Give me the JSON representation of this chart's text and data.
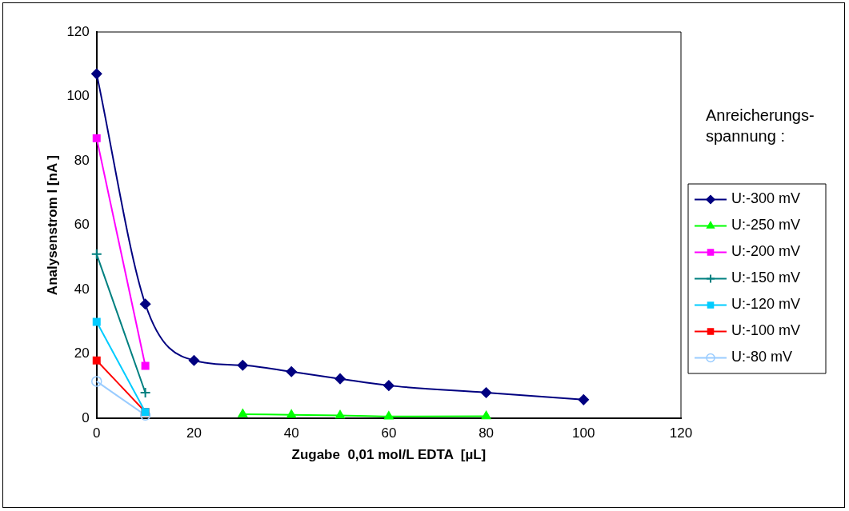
{
  "chart_data": {
    "type": "line",
    "xlabel": "Zugabe  0,01 mol/L EDTA  [µL]",
    "ylabel": "Analysenstrom I [nA ]",
    "legend_title": "Anreicherungs-spannung :",
    "xlim": [
      0,
      120
    ],
    "xticks": [
      0,
      20,
      40,
      60,
      80,
      100,
      120
    ],
    "ylim": [
      0,
      120
    ],
    "yticks": [
      0,
      20,
      40,
      60,
      80,
      100,
      120
    ],
    "grid": false,
    "legend": "right",
    "series": [
      {
        "name": "U:-300 mV",
        "color": "#000080",
        "marker": "diamond",
        "x": [
          0,
          10,
          20,
          30,
          40,
          50,
          60,
          80,
          100
        ],
        "values": [
          107,
          35.5,
          18,
          16.5,
          14.5,
          12.3,
          10.2,
          8,
          5.8
        ]
      },
      {
        "name": "U:-250 mV",
        "color": "#00ff00",
        "marker": "triangle",
        "x": [
          30,
          40,
          50,
          60,
          80
        ],
        "values": [
          1.3,
          1.1,
          0.9,
          0.6,
          0.7
        ]
      },
      {
        "name": "U:-200 mV",
        "color": "#ff00ff",
        "marker": "square",
        "x": [
          0,
          10
        ],
        "values": [
          87,
          16.3
        ]
      },
      {
        "name": "U:-150 mV",
        "color": "#008080",
        "marker": "cross",
        "x": [
          0,
          10
        ],
        "values": [
          51,
          8
        ]
      },
      {
        "name": "U:-120 mV",
        "color": "#00ccff",
        "marker": "square",
        "x": [
          0,
          10
        ],
        "values": [
          30,
          2
        ]
      },
      {
        "name": "U:-100 mV",
        "color": "#ff0000",
        "marker": "square",
        "x": [
          0,
          10
        ],
        "values": [
          18,
          2
        ]
      },
      {
        "name": "U:-80 mV",
        "color": "#99ccff",
        "marker": "circle",
        "x": [
          0,
          10
        ],
        "values": [
          11.5,
          1
        ]
      }
    ]
  }
}
